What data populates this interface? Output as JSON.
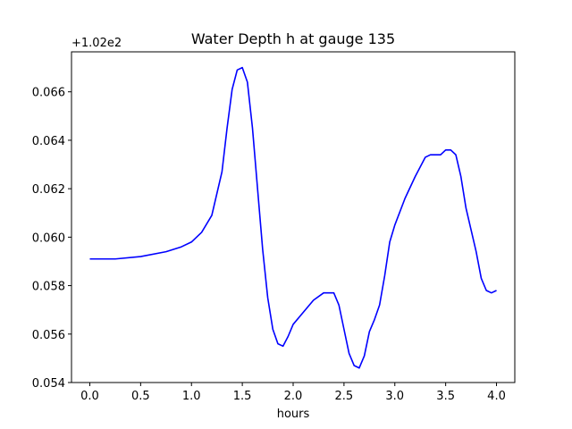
{
  "chart_data": {
    "type": "line",
    "title": "Water Depth h at gauge 135",
    "xlabel": "hours",
    "ylabel": "",
    "y_offset_label": "+1.02e2",
    "xlim": [
      -0.18,
      4.18
    ],
    "ylim": [
      0.054,
      0.06765
    ],
    "x_ticks": [
      0.0,
      0.5,
      1.0,
      1.5,
      2.0,
      2.5,
      3.0,
      3.5,
      4.0
    ],
    "x_tick_labels": [
      "0.0",
      "0.5",
      "1.0",
      "1.5",
      "2.0",
      "2.5",
      "3.0",
      "3.5",
      "4.0"
    ],
    "y_ticks": [
      0.054,
      0.056,
      0.058,
      0.06,
      0.062,
      0.064,
      0.066
    ],
    "y_tick_labels": [
      "0.054",
      "0.056",
      "0.058",
      "0.060",
      "0.062",
      "0.064",
      "0.066"
    ],
    "grid": false,
    "series": [
      {
        "color": "#0000ff",
        "x": [
          0.0,
          0.25,
          0.5,
          0.75,
          0.9,
          1.0,
          1.1,
          1.2,
          1.3,
          1.35,
          1.4,
          1.45,
          1.5,
          1.55,
          1.6,
          1.65,
          1.7,
          1.75,
          1.8,
          1.85,
          1.9,
          1.95,
          2.0,
          2.1,
          2.2,
          2.3,
          2.4,
          2.45,
          2.5,
          2.55,
          2.6,
          2.65,
          2.7,
          2.75,
          2.8,
          2.85,
          2.9,
          2.95,
          3.0,
          3.1,
          3.2,
          3.3,
          3.35,
          3.4,
          3.45,
          3.5,
          3.55,
          3.6,
          3.65,
          3.7,
          3.75,
          3.8,
          3.85,
          3.9,
          3.95,
          4.0
        ],
        "y": [
          0.0591,
          0.0591,
          0.0592,
          0.0594,
          0.0596,
          0.0598,
          0.0602,
          0.0609,
          0.0627,
          0.0645,
          0.0661,
          0.0669,
          0.067,
          0.0664,
          0.0645,
          0.062,
          0.0595,
          0.0575,
          0.0562,
          0.0556,
          0.0555,
          0.0559,
          0.0564,
          0.0569,
          0.0574,
          0.0577,
          0.0577,
          0.0572,
          0.0562,
          0.0552,
          0.0547,
          0.0546,
          0.0551,
          0.0561,
          0.0566,
          0.0572,
          0.0584,
          0.0598,
          0.0605,
          0.0616,
          0.0625,
          0.0633,
          0.0634,
          0.0634,
          0.0634,
          0.0636,
          0.0636,
          0.0634,
          0.0625,
          0.0612,
          0.0603,
          0.0594,
          0.0583,
          0.0578,
          0.0577,
          0.0578
        ]
      }
    ]
  }
}
